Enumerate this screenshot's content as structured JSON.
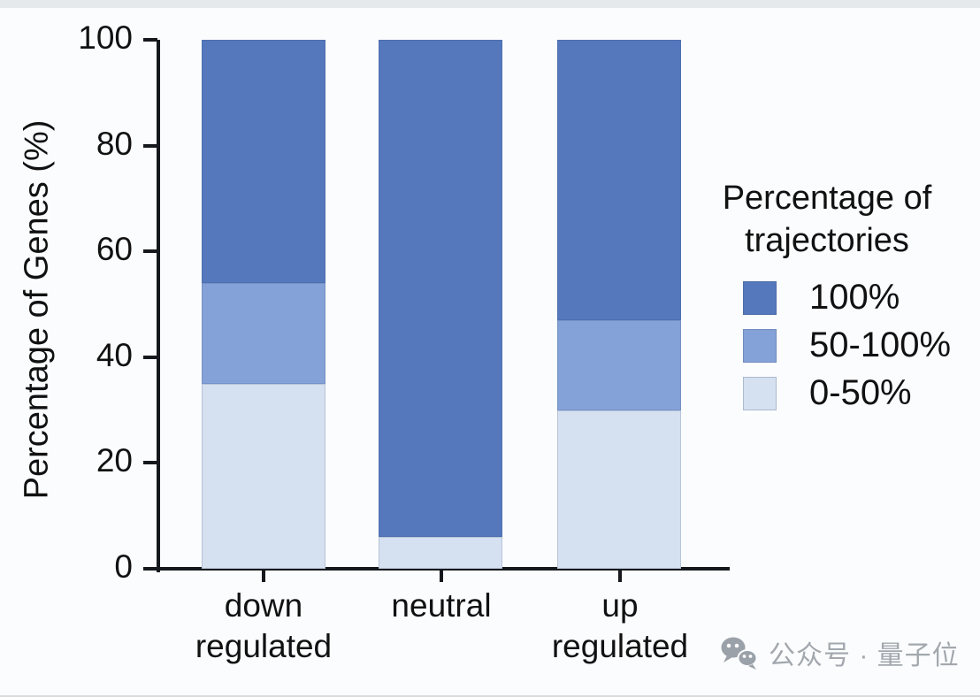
{
  "page": {
    "background": "#fbfcfd",
    "top_strip_color": "#e6e9ec",
    "bottom_edge_color": "#d9dcdf"
  },
  "watermark": {
    "icon": "wechat-icon",
    "text": "公众号 · 量子位",
    "color": "#a2a8ae"
  },
  "chart_data": {
    "type": "bar",
    "stacked": true,
    "orientation": "vertical",
    "title": "",
    "xlabel": "",
    "ylabel": "Percentage of Genes (%)",
    "ylim": [
      0,
      100
    ],
    "yticks": [
      0,
      20,
      40,
      60,
      80,
      100
    ],
    "grid": false,
    "axis_color": "#15181c",
    "text_color": "#111111",
    "categories": [
      "down regulated",
      "neutral",
      "up regulated"
    ],
    "series": [
      {
        "name": "100%",
        "values": [
          46,
          94,
          53
        ],
        "color": "#5578bd"
      },
      {
        "name": "50-100%",
        "values": [
          19,
          0,
          17
        ],
        "color": "#85a2d8"
      },
      {
        "name": "0-50%",
        "values": [
          35,
          6,
          30
        ],
        "color": "#d5e0f0"
      }
    ],
    "legend": {
      "title": "Percentage of trajectories",
      "position": "right",
      "entries": [
        {
          "label": "100%",
          "color": "#5578bd"
        },
        {
          "label": "50-100%",
          "color": "#85a2d8"
        },
        {
          "label": "0-50%",
          "color": "#d5e0f0"
        }
      ]
    }
  }
}
